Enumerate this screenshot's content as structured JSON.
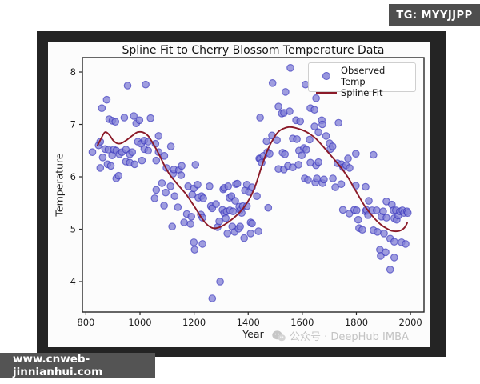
{
  "badges": {
    "top_right": {
      "label": "TG: MYYJJPP",
      "bg": "#4e4e4e",
      "color": "#ffffff"
    },
    "bottom_left": {
      "label": "www.cnweb-jinnianhui.com",
      "bg": "#545454",
      "color": "#ffffff"
    }
  },
  "watermark": {
    "icon": "wechat-icon",
    "text": "公众号 · DeepHub IMBA",
    "color": "#c3c3c3"
  },
  "chart_data": {
    "type": "scatter",
    "title": "Spline Fit to Cherry Blossom Temperature Data",
    "xlabel": "Year",
    "ylabel": "Temperature",
    "xlim": [
      787,
      2050
    ],
    "ylim": [
      3.42,
      8.275
    ],
    "xticks": [
      800,
      1000,
      1200,
      1400,
      1600,
      1800,
      2000
    ],
    "yticks": [
      4,
      5,
      6,
      7,
      8
    ],
    "grid": false,
    "legend": {
      "position": "upper right",
      "entries": [
        {
          "label": "Observed Temp",
          "type": "marker"
        },
        {
          "label": "Spline Fit",
          "type": "line"
        }
      ]
    },
    "colors": {
      "scatter_fill": "#8583d8",
      "scatter_edge": "#4340c0",
      "spline": "#8b1a28",
      "axis": "#262626",
      "tick_text": "#1c1c1c"
    },
    "series": [
      {
        "name": "Observed Temp",
        "type": "scatter",
        "points": [
          [
            824,
            6.47
          ],
          [
            847,
            6.6
          ],
          [
            853,
            6.67
          ],
          [
            853,
            6.17
          ],
          [
            859,
            7.31
          ],
          [
            862,
            6.37
          ],
          [
            871,
            6.53
          ],
          [
            877,
            7.47
          ],
          [
            880,
            6.24
          ],
          [
            883,
            6.52
          ],
          [
            886,
            7.1
          ],
          [
            892,
            6.21
          ],
          [
            897,
            6.41
          ],
          [
            898,
            7.07
          ],
          [
            903,
            6.52
          ],
          [
            909,
            7.05
          ],
          [
            912,
            6.5
          ],
          [
            912,
            5.97
          ],
          [
            921,
            6.02
          ],
          [
            924,
            6.43
          ],
          [
            933,
            6.47
          ],
          [
            942,
            7.13
          ],
          [
            948,
            6.52
          ],
          [
            948,
            6.29
          ],
          [
            954,
            7.74
          ],
          [
            962,
            6.43
          ],
          [
            962,
            6.27
          ],
          [
            971,
            6.47
          ],
          [
            977,
            7.16
          ],
          [
            980,
            6.24
          ],
          [
            986,
            7.02
          ],
          [
            992,
            6.67
          ],
          [
            998,
            7.08
          ],
          [
            1004,
            6.63
          ],
          [
            1007,
            6.31
          ],
          [
            1016,
            6.69
          ],
          [
            1016,
            6.53
          ],
          [
            1021,
            7.76
          ],
          [
            1030,
            6.67
          ],
          [
            1030,
            6.5
          ],
          [
            1039,
            7.12
          ],
          [
            1054,
            5.59
          ],
          [
            1057,
            6.63
          ],
          [
            1060,
            6.31
          ],
          [
            1060,
            5.75
          ],
          [
            1069,
            6.78
          ],
          [
            1069,
            6.47
          ],
          [
            1081,
            5.88
          ],
          [
            1089,
            5.45
          ],
          [
            1090,
            6.4
          ],
          [
            1095,
            5.7
          ],
          [
            1098,
            6.17
          ],
          [
            1113,
            5.82
          ],
          [
            1114,
            6.58
          ],
          [
            1119,
            5.05
          ],
          [
            1122,
            6.06
          ],
          [
            1125,
            6.14
          ],
          [
            1128,
            5.63
          ],
          [
            1140,
            5.42
          ],
          [
            1144,
            6.13
          ],
          [
            1152,
            6.03
          ],
          [
            1154,
            6.21
          ],
          [
            1163,
            5.13
          ],
          [
            1173,
            5.29
          ],
          [
            1178,
            5.82
          ],
          [
            1187,
            5.1
          ],
          [
            1190,
            5.24
          ],
          [
            1193,
            5.66
          ],
          [
            1199,
            5.78
          ],
          [
            1199,
            4.75
          ],
          [
            1202,
            4.61
          ],
          [
            1205,
            6.23
          ],
          [
            1213,
            5.85
          ],
          [
            1216,
            5.6
          ],
          [
            1225,
            5.28
          ],
          [
            1227,
            5.63
          ],
          [
            1231,
            5.22
          ],
          [
            1231,
            4.72
          ],
          [
            1234,
            5.59
          ],
          [
            1257,
            5.82
          ],
          [
            1262,
            5.44
          ],
          [
            1267,
            5.4
          ],
          [
            1267,
            3.68
          ],
          [
            1281,
            5.48
          ],
          [
            1287,
            5.04
          ],
          [
            1293,
            5.15
          ],
          [
            1296,
            4.0
          ],
          [
            1305,
            5.37
          ],
          [
            1308,
            5.76
          ],
          [
            1311,
            5.31
          ],
          [
            1311,
            5.79
          ],
          [
            1317,
            5.21
          ],
          [
            1320,
            5.34
          ],
          [
            1323,
            4.92
          ],
          [
            1326,
            5.82
          ],
          [
            1331,
            5.6
          ],
          [
            1332,
            5.36
          ],
          [
            1338,
            5.63
          ],
          [
            1341,
            5.05
          ],
          [
            1344,
            5.34
          ],
          [
            1350,
            4.95
          ],
          [
            1352,
            5.54
          ],
          [
            1355,
            5.86
          ],
          [
            1360,
            5.87
          ],
          [
            1364,
            5.01
          ],
          [
            1367,
            5.43
          ],
          [
            1370,
            5.36
          ],
          [
            1370,
            5.05
          ],
          [
            1376,
            5.31
          ],
          [
            1380,
            5.44
          ],
          [
            1385,
            4.83
          ],
          [
            1388,
            5.74
          ],
          [
            1395,
            5.85
          ],
          [
            1395,
            5.44
          ],
          [
            1403,
            5.71
          ],
          [
            1409,
            5.13
          ],
          [
            1409,
            4.92
          ],
          [
            1414,
            5.8
          ],
          [
            1414,
            5.11
          ],
          [
            1432,
            5.63
          ],
          [
            1438,
            4.96
          ],
          [
            1441,
            6.35
          ],
          [
            1444,
            7.13
          ],
          [
            1444,
            6.34
          ],
          [
            1450,
            6.27
          ],
          [
            1456,
            6.4
          ],
          [
            1468,
            6.68
          ],
          [
            1471,
            6.47
          ],
          [
            1474,
            5.41
          ],
          [
            1479,
            6.44
          ],
          [
            1490,
            7.79
          ],
          [
            1488,
            6.79
          ],
          [
            1506,
            6.7
          ],
          [
            1512,
            7.34
          ],
          [
            1512,
            6.15
          ],
          [
            1524,
            7.21
          ],
          [
            1527,
            6.46
          ],
          [
            1532,
            7.22
          ],
          [
            1532,
            6.14
          ],
          [
            1536,
            6.43
          ],
          [
            1538,
            7.62
          ],
          [
            1547,
            6.21
          ],
          [
            1553,
            7.25
          ],
          [
            1556,
            8.08
          ],
          [
            1565,
            6.73
          ],
          [
            1565,
            6.18
          ],
          [
            1577,
            7.08
          ],
          [
            1580,
            6.72
          ],
          [
            1586,
            6.23
          ],
          [
            1588,
            6.5
          ],
          [
            1592,
            7.06
          ],
          [
            1598,
            6.41
          ],
          [
            1606,
            6.55
          ],
          [
            1609,
            5.97
          ],
          [
            1612,
            7.76
          ],
          [
            1615,
            6.52
          ],
          [
            1621,
            5.94
          ],
          [
            1627,
            6.71
          ],
          [
            1630,
            7.31
          ],
          [
            1630,
            6.27
          ],
          [
            1645,
            7.28
          ],
          [
            1645,
            6.96
          ],
          [
            1648,
            5.89
          ],
          [
            1651,
            7.5
          ],
          [
            1651,
            6.22
          ],
          [
            1654,
            5.97
          ],
          [
            1660,
            6.85
          ],
          [
            1660,
            6.28
          ],
          [
            1672,
            7.08
          ],
          [
            1674,
            7.0
          ],
          [
            1675,
            5.88
          ],
          [
            1680,
            5.95
          ],
          [
            1688,
            6.78
          ],
          [
            1701,
            6.64
          ],
          [
            1704,
            6.53
          ],
          [
            1712,
            6.58
          ],
          [
            1713,
            5.97
          ],
          [
            1722,
            5.8
          ],
          [
            1730,
            6.26
          ],
          [
            1734,
            7.03
          ],
          [
            1744,
            5.86
          ],
          [
            1745,
            6.24
          ],
          [
            1750,
            5.37
          ],
          [
            1751,
            6.18
          ],
          [
            1762,
            6.22
          ],
          [
            1769,
            6.35
          ],
          [
            1774,
            5.3
          ],
          [
            1775,
            6.17
          ],
          [
            1792,
            5.37
          ],
          [
            1798,
            6.44
          ],
          [
            1798,
            5.83
          ],
          [
            1801,
            5.36
          ],
          [
            1807,
            5.18
          ],
          [
            1810,
            5.02
          ],
          [
            1822,
            4.99
          ],
          [
            1834,
            5.81
          ],
          [
            1834,
            5.34
          ],
          [
            1837,
            5.37
          ],
          [
            1843,
            5.27
          ],
          [
            1846,
            5.54
          ],
          [
            1858,
            5.36
          ],
          [
            1863,
            6.42
          ],
          [
            1863,
            4.98
          ],
          [
            1875,
            5.36
          ],
          [
            1878,
            4.95
          ],
          [
            1887,
            4.61
          ],
          [
            1890,
            4.49
          ],
          [
            1893,
            5.24
          ],
          [
            1899,
            5.34
          ],
          [
            1902,
            4.92
          ],
          [
            1908,
            4.56
          ],
          [
            1911,
            5.53
          ],
          [
            1911,
            5.22
          ],
          [
            1925,
            4.82
          ],
          [
            1925,
            4.23
          ],
          [
            1931,
            5.47
          ],
          [
            1937,
            5.36
          ],
          [
            1940,
            5.21
          ],
          [
            1940,
            4.76
          ],
          [
            1940,
            4.46
          ],
          [
            1946,
            5.36
          ],
          [
            1949,
            5.18
          ],
          [
            1955,
            5.26
          ],
          [
            1961,
            5.34
          ],
          [
            1967,
            4.75
          ],
          [
            1970,
            5.36
          ],
          [
            1976,
            5.31
          ],
          [
            1982,
            4.72
          ],
          [
            1987,
            5.34
          ],
          [
            1990,
            5.31
          ]
        ]
      },
      {
        "name": "Spline Fit",
        "type": "line",
        "points": [
          [
            843,
            6.6
          ],
          [
            855,
            6.72
          ],
          [
            870,
            6.85
          ],
          [
            885,
            6.81
          ],
          [
            900,
            6.7
          ],
          [
            915,
            6.64
          ],
          [
            930,
            6.64
          ],
          [
            950,
            6.7
          ],
          [
            970,
            6.78
          ],
          [
            990,
            6.85
          ],
          [
            1010,
            6.85
          ],
          [
            1030,
            6.78
          ],
          [
            1050,
            6.62
          ],
          [
            1070,
            6.43
          ],
          [
            1090,
            6.22
          ],
          [
            1110,
            6.04
          ],
          [
            1130,
            5.91
          ],
          [
            1150,
            5.79
          ],
          [
            1170,
            5.67
          ],
          [
            1190,
            5.52
          ],
          [
            1210,
            5.36
          ],
          [
            1230,
            5.2
          ],
          [
            1250,
            5.08
          ],
          [
            1270,
            5.02
          ],
          [
            1290,
            5.03
          ],
          [
            1310,
            5.08
          ],
          [
            1330,
            5.15
          ],
          [
            1350,
            5.23
          ],
          [
            1370,
            5.33
          ],
          [
            1390,
            5.46
          ],
          [
            1410,
            5.63
          ],
          [
            1430,
            5.88
          ],
          [
            1450,
            6.2
          ],
          [
            1470,
            6.49
          ],
          [
            1490,
            6.7
          ],
          [
            1510,
            6.85
          ],
          [
            1530,
            6.92
          ],
          [
            1550,
            6.95
          ],
          [
            1570,
            6.94
          ],
          [
            1590,
            6.91
          ],
          [
            1610,
            6.87
          ],
          [
            1630,
            6.81
          ],
          [
            1650,
            6.73
          ],
          [
            1670,
            6.62
          ],
          [
            1690,
            6.5
          ],
          [
            1710,
            6.38
          ],
          [
            1730,
            6.26
          ],
          [
            1750,
            6.13
          ],
          [
            1770,
            5.98
          ],
          [
            1790,
            5.8
          ],
          [
            1810,
            5.62
          ],
          [
            1830,
            5.45
          ],
          [
            1850,
            5.31
          ],
          [
            1870,
            5.19
          ],
          [
            1890,
            5.09
          ],
          [
            1910,
            5.02
          ],
          [
            1930,
            4.97
          ],
          [
            1950,
            4.96
          ],
          [
            1965,
            4.98
          ],
          [
            1978,
            5.03
          ],
          [
            1988,
            5.12
          ]
        ]
      }
    ]
  }
}
